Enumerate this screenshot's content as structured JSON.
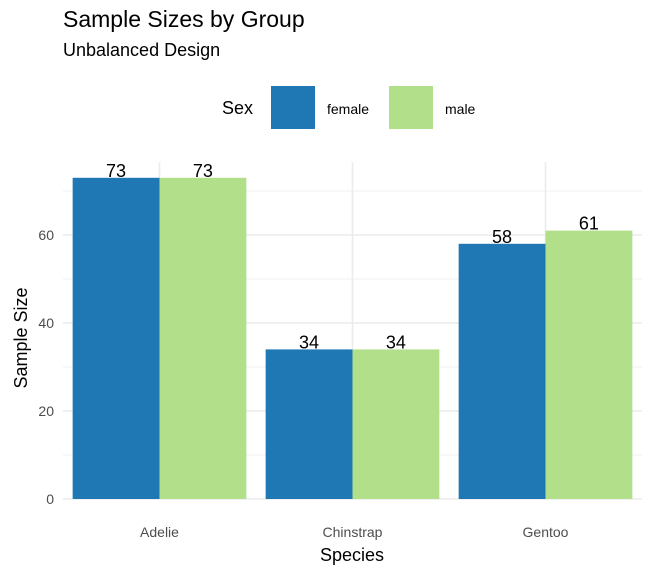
{
  "chart_data": {
    "type": "bar",
    "title": "Sample Sizes by Group",
    "subtitle": "Unbalanced Design",
    "xlabel": "Species",
    "ylabel": "Sample Size",
    "categories": [
      "Adelie",
      "Chinstrap",
      "Gentoo"
    ],
    "series": [
      {
        "name": "female",
        "values": [
          73,
          34,
          58
        ],
        "color": "#1F78B4"
      },
      {
        "name": "male",
        "values": [
          73,
          34,
          61
        ],
        "color": "#B2DF8A"
      }
    ],
    "ylim": [
      0,
      80
    ],
    "yticks": [
      0,
      20,
      40,
      60
    ],
    "legend": {
      "title": "Sex",
      "position": "top"
    },
    "grid": true
  }
}
